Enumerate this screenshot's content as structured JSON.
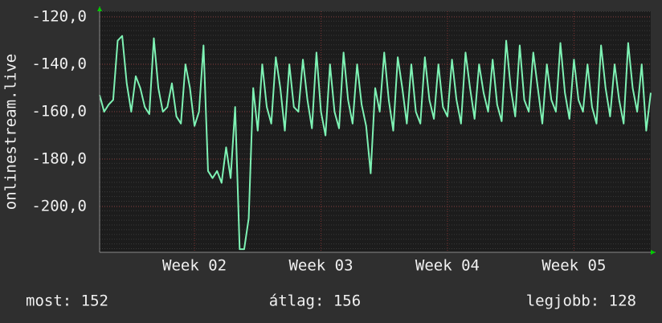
{
  "chart_data": {
    "type": "line",
    "ylabel": "onlinestream.live",
    "color": "#7ef2b4",
    "grid": true,
    "ylim": [
      -219.3,
      -117.6
    ],
    "yticks": [
      {
        "value": -120,
        "label": "-120,0"
      },
      {
        "value": -140,
        "label": "-140,0"
      },
      {
        "value": -160,
        "label": "-160,0"
      },
      {
        "value": -180,
        "label": "-180,0"
      },
      {
        "value": -200,
        "label": "-200,0"
      }
    ],
    "categories": [
      null,
      null,
      null,
      null,
      null,
      null,
      null,
      null,
      null,
      null,
      null,
      null,
      null,
      null,
      null,
      null,
      null,
      null,
      null,
      null,
      null,
      "Week 02",
      null,
      null,
      null,
      null,
      null,
      null,
      null,
      null,
      null,
      null,
      null,
      null,
      null,
      null,
      null,
      null,
      null,
      null,
      null,
      null,
      null,
      null,
      null,
      null,
      null,
      null,
      null,
      "Week 03",
      null,
      null,
      null,
      null,
      null,
      null,
      null,
      null,
      null,
      null,
      null,
      null,
      null,
      null,
      null,
      null,
      null,
      null,
      null,
      null,
      null,
      null,
      null,
      null,
      null,
      null,
      null,
      "Week 04",
      null,
      null,
      null,
      null,
      null,
      null,
      null,
      null,
      null,
      null,
      null,
      null,
      null,
      null,
      null,
      null,
      null,
      null,
      null,
      null,
      null,
      null,
      null,
      null,
      null,
      null,
      null,
      "Week 05",
      null,
      null,
      null,
      null,
      null,
      null,
      null,
      null,
      null,
      null,
      null,
      null,
      null,
      null,
      null,
      null,
      null
    ],
    "values": [
      -153,
      -160,
      -157,
      -155,
      -130,
      -128,
      -148,
      -160,
      -145,
      -150,
      -158,
      -161,
      -129,
      -150,
      -160,
      -158,
      -148,
      -162,
      -165,
      -140,
      -150,
      -166,
      -160,
      -132,
      -185,
      -188,
      -185,
      -190,
      -175,
      -188,
      -158,
      -218,
      -218,
      -205,
      -150,
      -168,
      -140,
      -158,
      -165,
      -137,
      -150,
      -168,
      -140,
      -158,
      -160,
      -138,
      -155,
      -167,
      -135,
      -160,
      -170,
      -140,
      -160,
      -167,
      -135,
      -155,
      -165,
      -140,
      -157,
      -166,
      -186,
      -150,
      -160,
      -135,
      -155,
      -168,
      -137,
      -150,
      -165,
      -140,
      -160,
      -165,
      -137,
      -155,
      -163,
      -140,
      -158,
      -162,
      -138,
      -155,
      -165,
      -135,
      -150,
      -163,
      -140,
      -152,
      -160,
      -138,
      -157,
      -164,
      -130,
      -150,
      -162,
      -132,
      -155,
      -160,
      -135,
      -150,
      -165,
      -140,
      -155,
      -160,
      -131,
      -152,
      -163,
      -138,
      -155,
      -160,
      -140,
      -158,
      -165,
      -132,
      -150,
      -162,
      -140,
      -155,
      -165,
      -131,
      -150,
      -160,
      -140,
      -168,
      -152
    ],
    "stats": [
      "most: 152",
      "átlag: 156",
      "legjobb: 128"
    ]
  }
}
